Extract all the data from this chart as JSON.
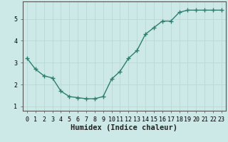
{
  "x": [
    0,
    1,
    2,
    3,
    4,
    5,
    6,
    7,
    8,
    9,
    10,
    11,
    12,
    13,
    14,
    15,
    16,
    17,
    18,
    19,
    20,
    21,
    22,
    23
  ],
  "y": [
    3.2,
    2.7,
    2.4,
    2.3,
    1.7,
    1.45,
    1.4,
    1.35,
    1.35,
    1.45,
    2.25,
    2.6,
    3.2,
    3.55,
    4.3,
    4.6,
    4.9,
    4.9,
    5.3,
    5.4,
    5.4,
    5.4,
    5.4,
    5.4
  ],
  "xlabel": "Humidex (Indice chaleur)",
  "line_color": "#2e7d6e",
  "bg_color": "#cce9e8",
  "grid_color": "#b8d8d6",
  "axis_color": "#555555",
  "ylim": [
    0.8,
    5.8
  ],
  "xlim": [
    -0.5,
    23.5
  ],
  "yticks": [
    1,
    2,
    3,
    4,
    5
  ],
  "xticks": [
    0,
    1,
    2,
    3,
    4,
    5,
    6,
    7,
    8,
    9,
    10,
    11,
    12,
    13,
    14,
    15,
    16,
    17,
    18,
    19,
    20,
    21,
    22,
    23
  ],
  "xtick_labels": [
    "0",
    "1",
    "2",
    "3",
    "4",
    "5",
    "6",
    "7",
    "8",
    "9",
    "10",
    "11",
    "12",
    "13",
    "14",
    "15",
    "16",
    "17",
    "18",
    "19",
    "20",
    "21",
    "22",
    "23"
  ],
  "tick_fontsize": 6,
  "label_fontsize": 7.5
}
